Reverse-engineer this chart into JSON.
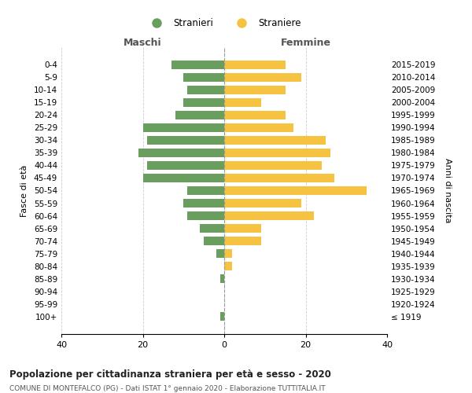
{
  "age_groups": [
    "100+",
    "95-99",
    "90-94",
    "85-89",
    "80-84",
    "75-79",
    "70-74",
    "65-69",
    "60-64",
    "55-59",
    "50-54",
    "45-49",
    "40-44",
    "35-39",
    "30-34",
    "25-29",
    "20-24",
    "15-19",
    "10-14",
    "5-9",
    "0-4"
  ],
  "birth_years": [
    "≤ 1919",
    "1920-1924",
    "1925-1929",
    "1930-1934",
    "1935-1939",
    "1940-1944",
    "1945-1949",
    "1950-1954",
    "1955-1959",
    "1960-1964",
    "1965-1969",
    "1970-1974",
    "1975-1979",
    "1980-1984",
    "1985-1989",
    "1990-1994",
    "1995-1999",
    "2000-2004",
    "2005-2009",
    "2010-2014",
    "2015-2019"
  ],
  "maschi": [
    1,
    0,
    0,
    1,
    0,
    2,
    5,
    6,
    9,
    10,
    9,
    20,
    19,
    21,
    19,
    20,
    12,
    10,
    9,
    10,
    13
  ],
  "femmine": [
    0,
    0,
    0,
    0,
    2,
    2,
    9,
    9,
    22,
    19,
    35,
    27,
    24,
    26,
    25,
    17,
    15,
    9,
    15,
    19,
    15
  ],
  "maschi_color": "#6a9e5e",
  "femmine_color": "#f5c242",
  "background_color": "#ffffff",
  "grid_color": "#cccccc",
  "title": "Popolazione per cittadinanza straniera per età e sesso - 2020",
  "subtitle": "COMUNE DI MONTEFALCO (PG) - Dati ISTAT 1° gennaio 2020 - Elaborazione TUTTITALIA.IT",
  "ylabel_left": "Fasce di età",
  "ylabel_right": "Anni di nascita",
  "xlabel_left": "Maschi",
  "xlabel_right": "Femmine",
  "legend_stranieri": "Stranieri",
  "legend_straniere": "Straniere",
  "xlim": 40
}
